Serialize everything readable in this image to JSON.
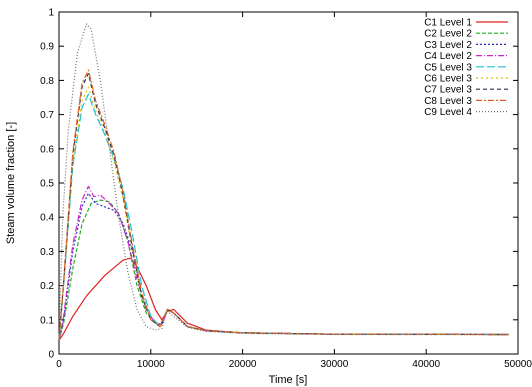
{
  "chart_data": {
    "type": "line",
    "xlabel": "Time [s]",
    "ylabel": "Steam volume fraction [-]",
    "xlim": [
      0,
      50000
    ],
    "ylim": [
      0,
      1
    ],
    "xticks": [
      0,
      10000,
      20000,
      30000,
      40000,
      50000
    ],
    "yticks": [
      0,
      0.1,
      0.2,
      0.3,
      0.4,
      0.5,
      0.6,
      0.7,
      0.8,
      0.9,
      1
    ],
    "xtick_labels": [
      "0",
      "10000",
      "20000",
      "30000",
      "40000",
      "50000"
    ],
    "ytick_labels": [
      "0",
      "0.1",
      "0.2",
      "0.3",
      "0.4",
      "0.5",
      "0.6",
      "0.7",
      "0.8",
      "0.9",
      "1"
    ],
    "grid": false,
    "legend_position": "top-right",
    "series": [
      {
        "name": "C1 Level 1",
        "color": "#e02020",
        "dash": "solid",
        "x": [
          0,
          500,
          1500,
          3000,
          5000,
          7000,
          7800,
          8500,
          9500,
          10500,
          11200,
          11800,
          12500,
          14000,
          16000,
          20000,
          30000,
          49000
        ],
        "y": [
          0.04,
          0.06,
          0.11,
          0.17,
          0.23,
          0.275,
          0.28,
          0.255,
          0.2,
          0.13,
          0.1,
          0.125,
          0.13,
          0.09,
          0.07,
          0.062,
          0.058,
          0.057
        ]
      },
      {
        "name": "C2 Level 2",
        "color": "#20b020",
        "dash": "4,2",
        "x": [
          0,
          500,
          1500,
          2500,
          3500,
          4500,
          5500,
          6500,
          7500,
          8500,
          9500,
          10500,
          11200,
          11800,
          12500,
          14000,
          16000,
          20000,
          30000,
          49000
        ],
        "y": [
          0.04,
          0.09,
          0.25,
          0.38,
          0.44,
          0.45,
          0.445,
          0.41,
          0.33,
          0.2,
          0.12,
          0.09,
          0.085,
          0.13,
          0.12,
          0.08,
          0.068,
          0.062,
          0.058,
          0.057
        ]
      },
      {
        "name": "C3 Level 2",
        "color": "#3030c0",
        "dash": "2,2",
        "x": [
          0,
          500,
          1500,
          2500,
          3200,
          4000,
          5000,
          6000,
          7000,
          8000,
          9000,
          10000,
          11200,
          11800,
          12500,
          14000,
          16000,
          20000,
          30000,
          49000
        ],
        "y": [
          0.04,
          0.1,
          0.3,
          0.43,
          0.47,
          0.44,
          0.43,
          0.42,
          0.38,
          0.3,
          0.18,
          0.1,
          0.085,
          0.13,
          0.12,
          0.08,
          0.068,
          0.062,
          0.058,
          0.057
        ]
      },
      {
        "name": "C4 Level 2",
        "color": "#d020d0",
        "dash": "6,2,1,2",
        "x": [
          0,
          500,
          1500,
          2500,
          3200,
          3800,
          4500,
          5500,
          6500,
          7500,
          8500,
          9500,
          10500,
          11200,
          11800,
          12500,
          14000,
          16000,
          20000,
          30000,
          49000
        ],
        "y": [
          0.04,
          0.11,
          0.32,
          0.45,
          0.49,
          0.46,
          0.465,
          0.44,
          0.41,
          0.33,
          0.22,
          0.13,
          0.09,
          0.085,
          0.13,
          0.12,
          0.08,
          0.068,
          0.062,
          0.058,
          0.057
        ]
      },
      {
        "name": "C5 Level 3",
        "color": "#20c0d0",
        "dash": "8,3",
        "x": [
          0,
          500,
          1500,
          2500,
          3200,
          4000,
          5000,
          6000,
          7000,
          8000,
          9000,
          10000,
          11000,
          11800,
          12500,
          14000,
          16000,
          20000,
          30000,
          49000
        ],
        "y": [
          0.04,
          0.2,
          0.55,
          0.72,
          0.76,
          0.7,
          0.64,
          0.57,
          0.48,
          0.35,
          0.2,
          0.11,
          0.08,
          0.13,
          0.12,
          0.08,
          0.068,
          0.062,
          0.058,
          0.057
        ]
      },
      {
        "name": "C6 Level 3",
        "color": "#e0c000",
        "dash": "2,3",
        "x": [
          0,
          500,
          1500,
          2500,
          3200,
          4000,
          5000,
          6000,
          7000,
          8000,
          9000,
          10000,
          11000,
          11800,
          12500,
          14000,
          16000,
          20000,
          30000,
          49000
        ],
        "y": [
          0.04,
          0.2,
          0.56,
          0.74,
          0.78,
          0.71,
          0.65,
          0.56,
          0.45,
          0.3,
          0.17,
          0.1,
          0.08,
          0.13,
          0.12,
          0.08,
          0.068,
          0.062,
          0.058,
          0.057
        ]
      },
      {
        "name": "C7 Level 3",
        "color": "#303050",
        "dash": "4,3",
        "x": [
          0,
          500,
          1500,
          2500,
          3200,
          4000,
          5000,
          6000,
          7000,
          8000,
          9000,
          10000,
          11000,
          11800,
          12500,
          14000,
          16000,
          20000,
          30000,
          49000
        ],
        "y": [
          0.04,
          0.21,
          0.58,
          0.78,
          0.82,
          0.73,
          0.66,
          0.58,
          0.46,
          0.31,
          0.17,
          0.1,
          0.08,
          0.13,
          0.12,
          0.08,
          0.068,
          0.062,
          0.058,
          0.057
        ]
      },
      {
        "name": "C8 Level 3",
        "color": "#e06020",
        "dash": "6,2,2,2",
        "x": [
          0,
          500,
          1500,
          2500,
          3200,
          4000,
          5000,
          6000,
          7000,
          8000,
          9000,
          10000,
          11000,
          11800,
          12500,
          14000,
          16000,
          20000,
          30000,
          49000
        ],
        "y": [
          0.04,
          0.21,
          0.59,
          0.79,
          0.83,
          0.74,
          0.67,
          0.59,
          0.47,
          0.32,
          0.18,
          0.1,
          0.08,
          0.13,
          0.12,
          0.08,
          0.068,
          0.062,
          0.058,
          0.057
        ]
      },
      {
        "name": "C9 Level 4",
        "color": "#707070",
        "dash": "1,2",
        "x": [
          0,
          400,
          1000,
          2000,
          3000,
          3500,
          4500,
          5500,
          6500,
          7500,
          8500,
          9500,
          10500,
          11200,
          11800,
          12500,
          14000,
          16000,
          20000,
          30000,
          49000
        ],
        "y": [
          0.04,
          0.4,
          0.65,
          0.88,
          0.965,
          0.95,
          0.8,
          0.6,
          0.4,
          0.24,
          0.13,
          0.08,
          0.07,
          0.075,
          0.125,
          0.11,
          0.078,
          0.066,
          0.06,
          0.057,
          0.056
        ]
      }
    ]
  }
}
